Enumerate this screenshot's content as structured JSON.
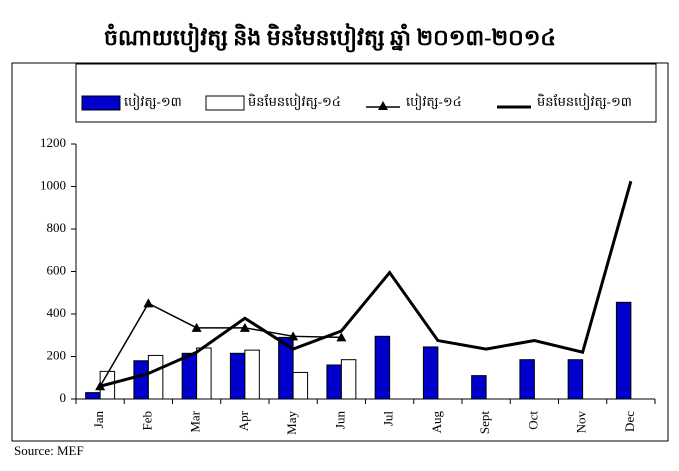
{
  "chart_data": {
    "type": "bar",
    "title": "ចំណាយបៀវត្ស និង មិនមែនបៀវត្ស ឆ្នាំ ២០១៣-២០១៤",
    "categories": [
      "Jan",
      "Feb",
      "Mar",
      "Apr",
      "May",
      "Jun",
      "Jul",
      "Aug",
      "Sept",
      "Oct",
      "Nov",
      "Dec"
    ],
    "series": [
      {
        "name": "បៀវត្ស-១៣",
        "type": "bar",
        "color": "#0000cc",
        "values": [
          30,
          180,
          215,
          215,
          290,
          160,
          295,
          245,
          110,
          185,
          185,
          455
        ]
      },
      {
        "name": "មិនមែនបៀវត្ស-១៤",
        "type": "bar",
        "color": "#ffffff",
        "values": [
          130,
          205,
          240,
          230,
          125,
          185,
          null,
          null,
          null,
          null,
          null,
          null
        ]
      },
      {
        "name": "បៀវត្ស-១៤",
        "type": "line",
        "marker": "triangle",
        "color": "#000000",
        "values": [
          60,
          450,
          335,
          335,
          295,
          290,
          null,
          null,
          null,
          null,
          null,
          null
        ]
      },
      {
        "name": "មិនមែនបៀវត្ស-១៣",
        "type": "line",
        "color": "#000000",
        "values": [
          60,
          120,
          220,
          380,
          235,
          320,
          595,
          275,
          235,
          275,
          220,
          1025
        ]
      }
    ],
    "ylim": [
      0,
      1200
    ],
    "yticks": [
      0,
      200,
      400,
      600,
      800,
      1000,
      1200
    ],
    "legend": "top",
    "source": "Source: MEF"
  }
}
